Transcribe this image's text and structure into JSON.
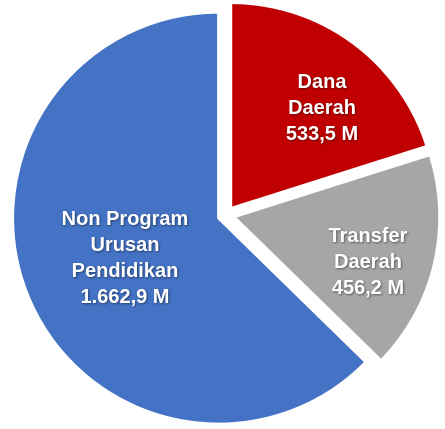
{
  "chart_data": {
    "type": "pie",
    "categories": [
      "Dana Daerah",
      "Transfer Daerah",
      "Non Program Urusan Pendidikan"
    ],
    "values": [
      533.5,
      456.2,
      1662.9
    ],
    "value_labels": [
      "533,5 M",
      "456,2 M",
      "1.662,9 M"
    ],
    "colors": [
      "#c00000",
      "#a6a6a6",
      "#4472c4"
    ]
  }
}
